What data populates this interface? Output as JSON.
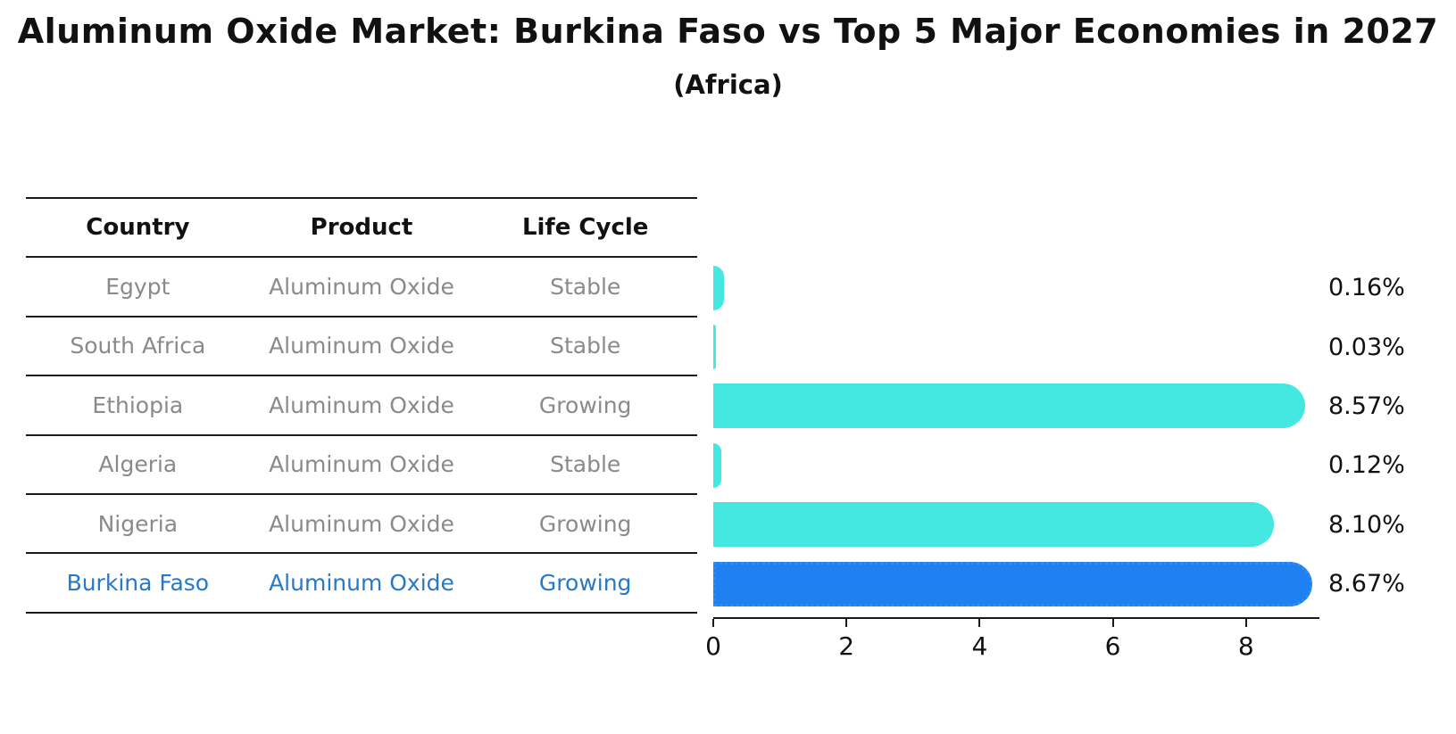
{
  "title": "Aluminum Oxide Market: Burkina Faso vs Top 5 Major Economies in 2027",
  "subtitle": "(Africa)",
  "table": {
    "headers": [
      "Country",
      "Product",
      "Life Cycle"
    ],
    "rows": [
      {
        "country": "Egypt",
        "product": "Aluminum Oxide",
        "life_cycle": "Stable",
        "highlight": false
      },
      {
        "country": "South Africa",
        "product": "Aluminum Oxide",
        "life_cycle": "Stable",
        "highlight": false
      },
      {
        "country": "Ethiopia",
        "product": "Aluminum Oxide",
        "life_cycle": "Growing",
        "highlight": false
      },
      {
        "country": "Algeria",
        "product": "Aluminum Oxide",
        "life_cycle": "Stable",
        "highlight": false
      },
      {
        "country": "Nigeria",
        "product": "Aluminum Oxide",
        "life_cycle": "Growing",
        "highlight": false
      },
      {
        "country": "Burkina Faso",
        "product": "Aluminum Oxide",
        "life_cycle": "Growing",
        "highlight": true
      }
    ]
  },
  "chart_data": {
    "type": "bar",
    "orientation": "horizontal",
    "title": "Aluminum Oxide Market: Burkina Faso vs Top 5 Major Economies in 2027",
    "subtitle": "(Africa)",
    "categories": [
      "Egypt",
      "South Africa",
      "Ethiopia",
      "Algeria",
      "Nigeria",
      "Burkina Faso"
    ],
    "values": [
      0.16,
      0.03,
      8.57,
      0.12,
      8.1,
      8.67
    ],
    "value_labels": [
      "0.16%",
      "0.03%",
      "8.57%",
      "0.12%",
      "8.10%",
      "8.67%"
    ],
    "x_ticks": [
      "0",
      "2",
      "4",
      "6",
      "8"
    ],
    "x_tick_values": [
      0,
      2,
      4,
      6,
      8
    ],
    "xlim": [
      0,
      9.1
    ],
    "grid": false,
    "legend": "none",
    "highlight_index": 5
  },
  "colors": {
    "bar": "#45e8e0",
    "highlight_bar": "#1f80f2",
    "highlight_bar_edge": "#2f8cf0",
    "highlight_text": "#2878c8",
    "table_text": "#8a8a8a",
    "header_text": "#111111",
    "rule": "#1a1a1a",
    "background": "#ffffff"
  }
}
